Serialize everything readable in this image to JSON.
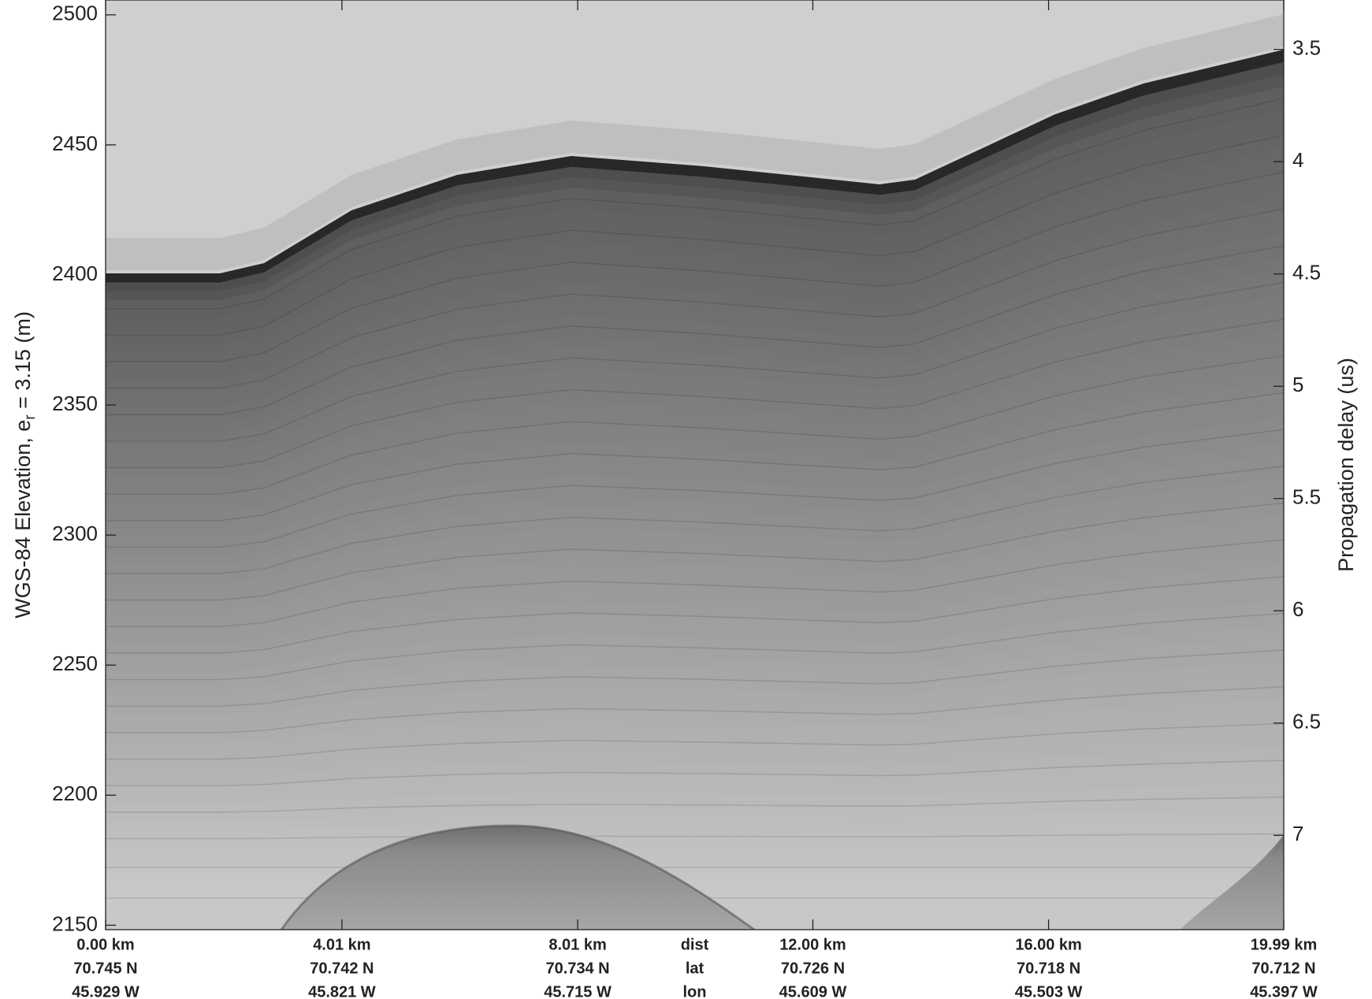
{
  "chart_data": {
    "type": "echogram",
    "ylabel": {
      "text": "WGS-84 Elevation, e",
      "subscript": "r",
      "suffix": " = 3.15 (m)"
    },
    "y2label": "Propagation delay (us)",
    "xlabel": "dist",
    "xlim": [
      0,
      19.99
    ],
    "xticks": [
      {
        "value": 0,
        "label": "0.00 km"
      },
      {
        "value": 4.01,
        "label": "4.01 km"
      },
      {
        "value": 8.01,
        "label": "8.01 km"
      },
      {
        "value": 12,
        "label": "12.00 km"
      },
      {
        "value": 16,
        "label": "16.00 km"
      },
      {
        "value": 19.99,
        "label": "19.99 km"
      }
    ],
    "x_rows": [
      {
        "name": "lat",
        "labels": [
          "70.745 N",
          "70.742 N",
          "70.734 N",
          "70.726 N",
          "70.718 N",
          "70.712 N"
        ]
      },
      {
        "name": "lon",
        "labels": [
          "45.929 W",
          "45.821 W",
          "45.715 W",
          "45.609 W",
          "45.503 W",
          "45.397 W"
        ]
      }
    ],
    "ylim": [
      2148.3,
      2505.7
    ],
    "yticks": [
      2150,
      2200,
      2250,
      2300,
      2350,
      2400,
      2450,
      2500
    ],
    "y2lim": [
      7.42,
      3.28
    ],
    "y2ticks": [
      3.5,
      4,
      4.5,
      5,
      5.5,
      6,
      6.5,
      7
    ]
  }
}
